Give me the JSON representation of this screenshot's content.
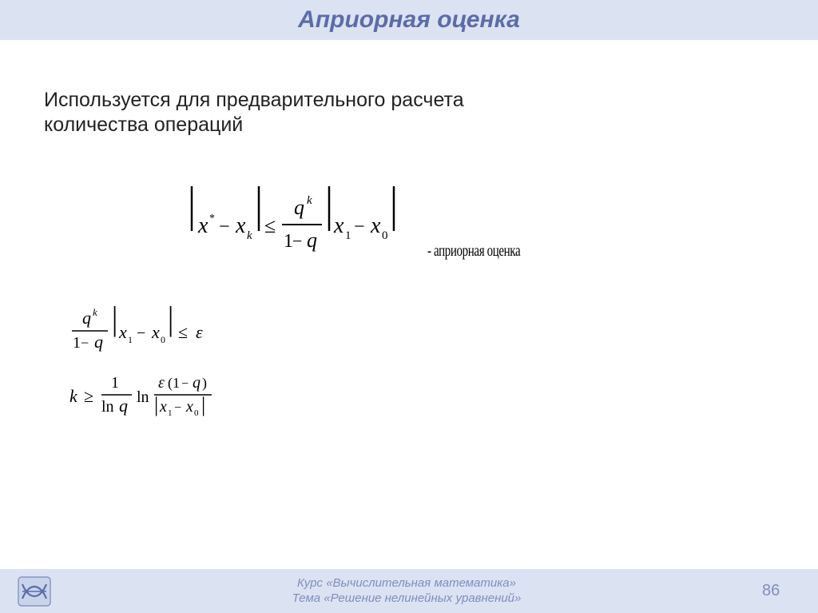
{
  "title": "Априорная оценка",
  "body_text": "Используется для предварительного расчета\nколичества операций",
  "caption1": "- априорная оценка",
  "footer": {
    "line1": "Курс «Вычислительная математика»",
    "line2": "Тема «Решение нелинейных уравнений»",
    "page": "86"
  },
  "colors": {
    "title_bg": "#dbe2f2",
    "title_fg": "#5b6ca8",
    "footer_fg": "#808ebc",
    "text": "#222222"
  },
  "formulas": {
    "f1": {
      "latex": "|x^* - x_k| \\le \\frac{q^k}{1-q} |x_1 - x_0|"
    },
    "f2": {
      "latex": "\\frac{q^k}{1-q} |x_1 - x_0| \\le \\varepsilon"
    },
    "f3": {
      "latex": "k \\ge \\frac{1}{\\ln q} \\ln \\frac{\\varepsilon(1-q)}{|x_1 - x_0|}"
    }
  }
}
